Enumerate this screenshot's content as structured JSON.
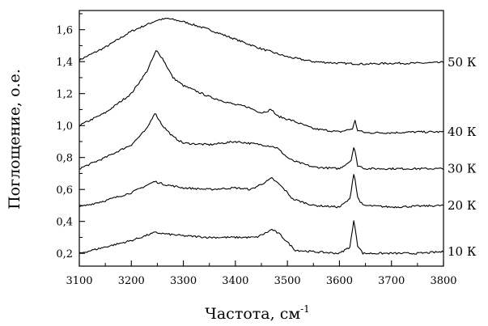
{
  "chart_data": {
    "type": "line",
    "title": "",
    "xlabel": "Частота, см",
    "xlabel_superscript": "-1",
    "ylabel": "Поглощение, о.е.",
    "xlim": [
      3100,
      3800
    ],
    "ylim": [
      0.12,
      1.72
    ],
    "xticks": [
      3100,
      3200,
      3300,
      3400,
      3500,
      3600,
      3700,
      3800
    ],
    "xtick_labels": [
      "3100",
      "3200",
      "3300",
      "3400",
      "3500",
      "3600",
      "3700",
      "3800"
    ],
    "yticks": [
      0.2,
      0.4,
      0.6,
      0.8,
      1.0,
      1.2,
      1.4,
      1.6
    ],
    "ytick_labels": [
      "0,2",
      "0,4",
      "0,6",
      "0,8",
      "1,0",
      "1,2",
      "1,4",
      "1,6"
    ],
    "grid": false,
    "legend": "none",
    "series": [
      {
        "name": "50 К",
        "x": [
          3100,
          3150,
          3200,
          3250,
          3270,
          3300,
          3350,
          3400,
          3450,
          3500,
          3550,
          3600,
          3650,
          3700,
          3750,
          3800
        ],
        "y": [
          1.41,
          1.49,
          1.59,
          1.66,
          1.67,
          1.65,
          1.6,
          1.54,
          1.48,
          1.43,
          1.4,
          1.39,
          1.385,
          1.39,
          1.39,
          1.395
        ]
      },
      {
        "name": "40 К",
        "x": [
          3100,
          3150,
          3200,
          3230,
          3248,
          3260,
          3280,
          3300,
          3350,
          3400,
          3420,
          3450,
          3470,
          3480,
          3500,
          3510,
          3550,
          3600,
          3625,
          3630,
          3635,
          3650,
          3700,
          3750,
          3800
        ],
        "y": [
          1.0,
          1.08,
          1.2,
          1.34,
          1.47,
          1.42,
          1.3,
          1.25,
          1.18,
          1.13,
          1.12,
          1.08,
          1.1,
          1.06,
          1.04,
          1.03,
          0.98,
          0.96,
          0.98,
          1.03,
          0.97,
          0.955,
          0.955,
          0.96,
          0.96
        ]
      },
      {
        "name": "30 К",
        "x": [
          3100,
          3150,
          3200,
          3230,
          3245,
          3260,
          3280,
          3300,
          3350,
          3400,
          3450,
          3470,
          3480,
          3500,
          3510,
          3550,
          3600,
          3622,
          3628,
          3635,
          3650,
          3700,
          3750,
          3800
        ],
        "y": [
          0.73,
          0.8,
          0.88,
          0.98,
          1.08,
          1.0,
          0.93,
          0.89,
          0.88,
          0.9,
          0.88,
          0.87,
          0.86,
          0.8,
          0.78,
          0.74,
          0.73,
          0.78,
          0.87,
          0.75,
          0.73,
          0.73,
          0.73,
          0.73
        ]
      },
      {
        "name": "20 К",
        "x": [
          3100,
          3150,
          3200,
          3245,
          3265,
          3300,
          3350,
          3400,
          3430,
          3460,
          3470,
          3485,
          3500,
          3510,
          3550,
          3600,
          3620,
          3628,
          3635,
          3645,
          3700,
          3750,
          3800
        ],
        "y": [
          0.49,
          0.53,
          0.58,
          0.65,
          0.63,
          0.61,
          0.6,
          0.61,
          0.6,
          0.65,
          0.67,
          0.63,
          0.58,
          0.54,
          0.5,
          0.49,
          0.54,
          0.71,
          0.55,
          0.5,
          0.49,
          0.495,
          0.5
        ]
      },
      {
        "name": "10 К",
        "x": [
          3100,
          3150,
          3200,
          3245,
          3270,
          3300,
          3350,
          3400,
          3440,
          3460,
          3470,
          3485,
          3500,
          3515,
          3550,
          3600,
          3620,
          3628,
          3635,
          3645,
          3700,
          3750,
          3800
        ],
        "y": [
          0.2,
          0.24,
          0.28,
          0.33,
          0.32,
          0.31,
          0.3,
          0.3,
          0.3,
          0.33,
          0.35,
          0.32,
          0.27,
          0.22,
          0.21,
          0.2,
          0.24,
          0.41,
          0.25,
          0.2,
          0.2,
          0.2,
          0.21
        ]
      }
    ]
  }
}
